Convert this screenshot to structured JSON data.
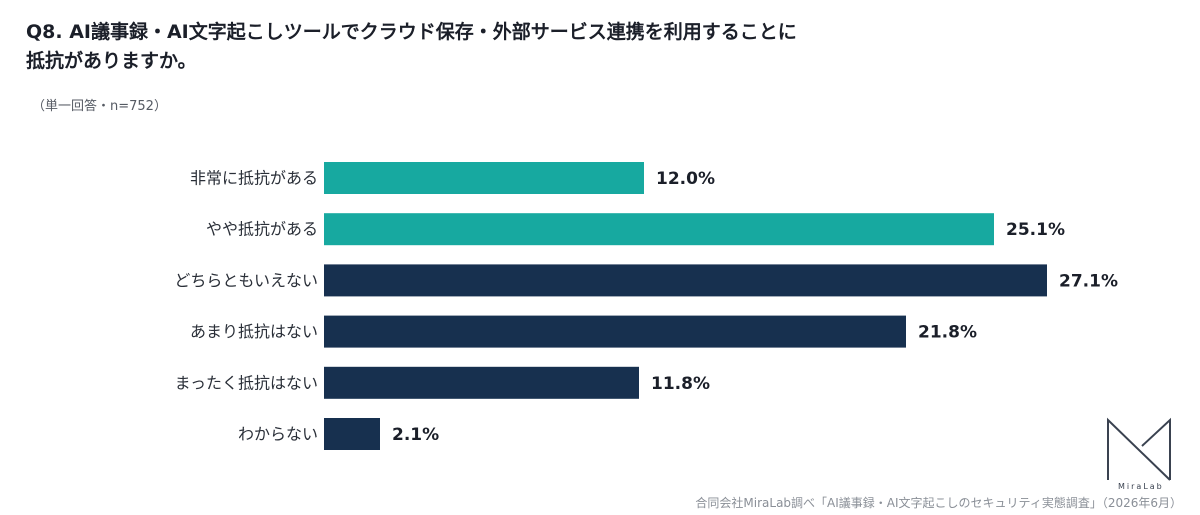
{
  "title": {
    "line1": "Q8. AI議事録・AI文字起こしツールでクラウド保存・外部サービス連携を利用することに",
    "line2": "抵抗がありますか。"
  },
  "subtitle": "（単一回答・n=752）",
  "source": "合同会社MiraLab調べ「AI議事録・AI文字起こしのセキュリティ実態調査」（2026年6月）",
  "logo": {
    "text": "MiraLab",
    "icon": "miralab-logo-icon"
  },
  "chart_data": {
    "type": "bar",
    "orientation": "horizontal",
    "categories": [
      "非常に抵抗がある",
      "やや抵抗がある",
      "どちらともいえない",
      "あまり抵抗はない",
      "まったく抵抗はない",
      "わからない"
    ],
    "values": [
      12.0,
      25.1,
      27.1,
      21.8,
      11.8,
      2.1
    ],
    "value_labels": [
      "12.0%",
      "25.1%",
      "27.1%",
      "21.8%",
      "11.8%",
      "2.1%"
    ],
    "colors": [
      "#17a9a0",
      "#17a9a0",
      "#17304f",
      "#17304f",
      "#17304f",
      "#17304f"
    ],
    "xlim": [
      0,
      27.1
    ],
    "grid": false,
    "legend": "none"
  }
}
